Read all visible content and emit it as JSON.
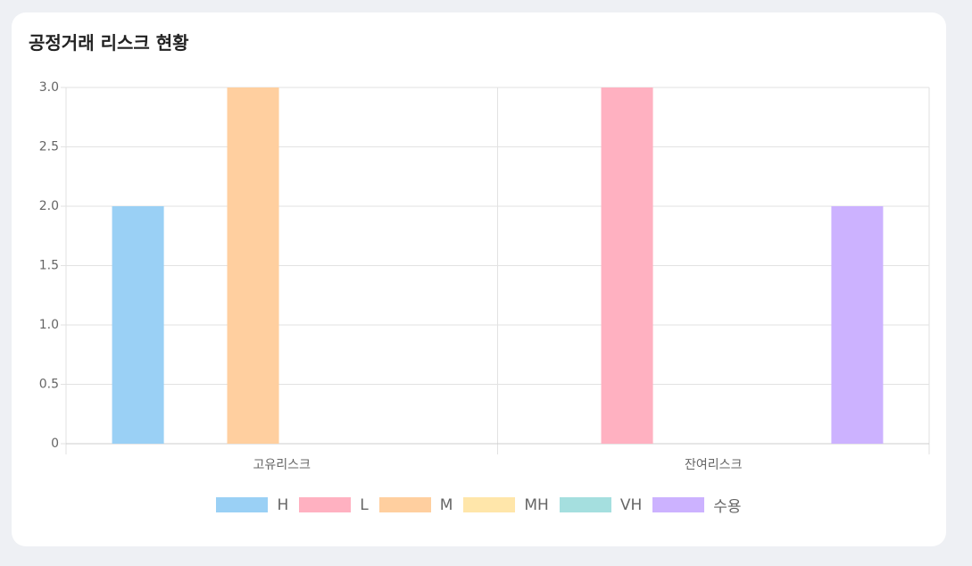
{
  "chart_data": {
    "type": "bar",
    "title": "공정거래 리스크 현황",
    "categories": [
      "고유리스크",
      "잔여리스크"
    ],
    "series": [
      {
        "name": "H",
        "color": "#9ad0f5",
        "values": [
          2,
          0
        ]
      },
      {
        "name": "L",
        "color": "#ffb1c1",
        "values": [
          0,
          3
        ]
      },
      {
        "name": "M",
        "color": "#ffcf9f",
        "values": [
          3,
          0
        ]
      },
      {
        "name": "MH",
        "color": "#ffe6aa",
        "values": [
          0,
          0
        ]
      },
      {
        "name": "VH",
        "color": "#a5dfdf",
        "values": [
          0,
          0
        ]
      },
      {
        "name": "수용",
        "color": "#ccb2ff",
        "values": [
          0,
          2
        ]
      }
    ],
    "ylim": [
      0,
      3
    ],
    "yticks": [
      0,
      0.5,
      {
        "value": 1,
        "label": "1.0"
      },
      1.5,
      {
        "value": 2,
        "label": "2.0"
      },
      2.5,
      {
        "value": 3,
        "label": "3.0"
      }
    ],
    "grid": true,
    "legend": "bottom"
  }
}
